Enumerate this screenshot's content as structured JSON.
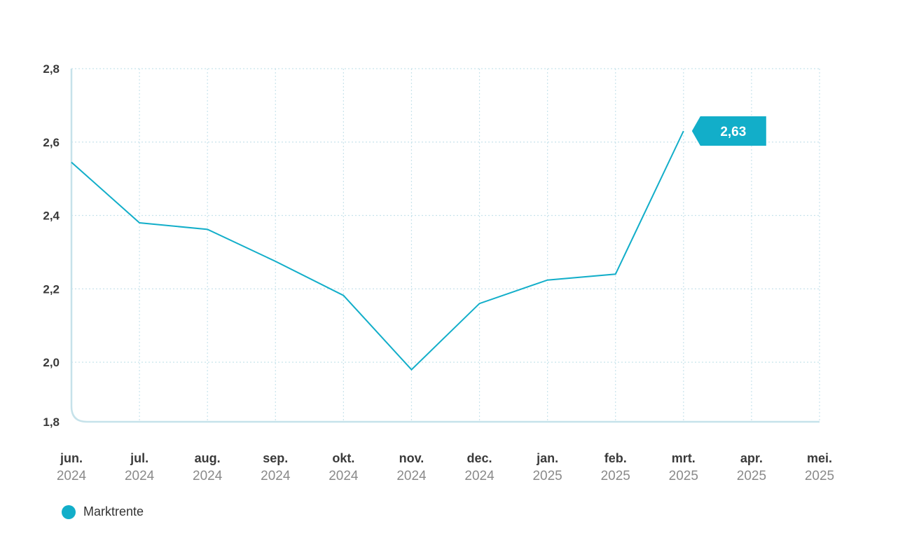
{
  "colors": {
    "series": "#12aec9",
    "grid": "#c8e3ec",
    "axis": "#c6e2ea",
    "callout_bg": "#12aec9"
  },
  "chart_data": {
    "type": "line",
    "x": [
      {
        "month": "jun.",
        "year": "2024"
      },
      {
        "month": "jul.",
        "year": "2024"
      },
      {
        "month": "aug.",
        "year": "2024"
      },
      {
        "month": "sep.",
        "year": "2024"
      },
      {
        "month": "okt.",
        "year": "2024"
      },
      {
        "month": "nov.",
        "year": "2024"
      },
      {
        "month": "dec.",
        "year": "2024"
      },
      {
        "month": "jan.",
        "year": "2025"
      },
      {
        "month": "feb.",
        "year": "2025"
      },
      {
        "month": "mrt.",
        "year": "2025"
      },
      {
        "month": "apr.",
        "year": "2025"
      },
      {
        "month": "mei.",
        "year": "2025"
      }
    ],
    "series": [
      {
        "name": "Marktrente",
        "values": [
          2.545,
          2.38,
          2.362,
          2.275,
          2.182,
          1.975,
          2.16,
          2.224,
          2.24,
          2.63,
          null,
          null
        ]
      }
    ],
    "y_ticks": [
      {
        "value": 1.8,
        "label": "1,8"
      },
      {
        "value": 2.0,
        "label": "2,0"
      },
      {
        "value": 2.2,
        "label": "2,2"
      },
      {
        "value": 2.4,
        "label": "2,4"
      },
      {
        "value": 2.6,
        "label": "2,6"
      },
      {
        "value": 2.8,
        "label": "2,8"
      }
    ],
    "ylim": [
      1.8,
      2.8
    ],
    "grid": true,
    "callout": {
      "index": 9,
      "label": "2,63"
    },
    "legend": {
      "label": "Marktrente",
      "placement": "bottom-left"
    }
  }
}
